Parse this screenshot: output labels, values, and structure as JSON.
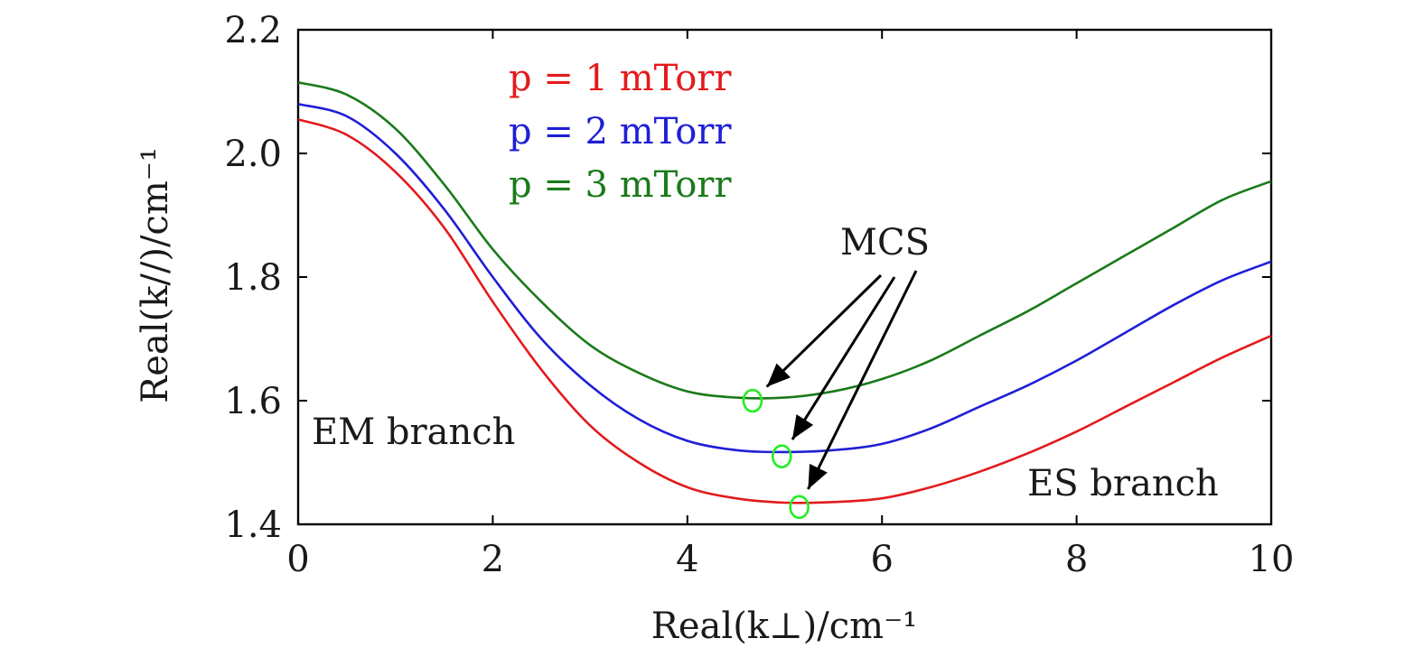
{
  "chart_data": {
    "type": "line",
    "title": "",
    "xlabel": "Real(k⊥)/cm⁻¹",
    "ylabel": "Real(k//)/cm⁻¹",
    "xlim": [
      0,
      10
    ],
    "ylim": [
      1.4,
      2.2
    ],
    "xticks": [
      0,
      2,
      4,
      6,
      8,
      10
    ],
    "yticks": [
      1.4,
      1.6,
      1.8,
      2.0,
      2.2
    ],
    "xtick_labels": [
      "0",
      "2",
      "4",
      "6",
      "8",
      "10"
    ],
    "ytick_labels": [
      "1.4",
      "1.6",
      "1.8",
      "2.0",
      "2.2"
    ],
    "grid": false,
    "legend_position": "top-left",
    "x": [
      0,
      0.5,
      1,
      1.5,
      2,
      2.5,
      3,
      3.5,
      4,
      4.5,
      5,
      5.5,
      6,
      6.5,
      7,
      7.5,
      8,
      8.5,
      9,
      9.5,
      10
    ],
    "series": [
      {
        "name": "p = 1 mTorr",
        "color": "#e31a1c",
        "values": [
          2.055,
          2.03,
          1.97,
          1.88,
          1.76,
          1.65,
          1.56,
          1.5,
          1.46,
          1.442,
          1.435,
          1.436,
          1.442,
          1.46,
          1.485,
          1.515,
          1.55,
          1.59,
          1.63,
          1.67,
          1.705
        ]
      },
      {
        "name": "p = 2 mTorr",
        "color": "#1f1fd6",
        "values": [
          2.08,
          2.06,
          2.0,
          1.91,
          1.8,
          1.7,
          1.625,
          1.57,
          1.535,
          1.52,
          1.517,
          1.52,
          1.53,
          1.555,
          1.59,
          1.625,
          1.665,
          1.71,
          1.755,
          1.795,
          1.825
        ]
      },
      {
        "name": "p = 3 mTorr",
        "color": "#1a7a1a",
        "values": [
          2.115,
          2.095,
          2.04,
          1.95,
          1.845,
          1.76,
          1.69,
          1.645,
          1.615,
          1.605,
          1.605,
          1.615,
          1.635,
          1.665,
          1.705,
          1.745,
          1.79,
          1.835,
          1.88,
          1.925,
          1.955
        ]
      }
    ],
    "mcs_points": [
      {
        "x": 4.67,
        "y": 1.6
      },
      {
        "x": 4.97,
        "y": 1.51
      },
      {
        "x": 5.15,
        "y": 1.428
      }
    ],
    "annotations": {
      "mcs": "MCS",
      "em_branch": "EM branch",
      "es_branch": "ES branch"
    },
    "marker_color": "#22ee22"
  }
}
